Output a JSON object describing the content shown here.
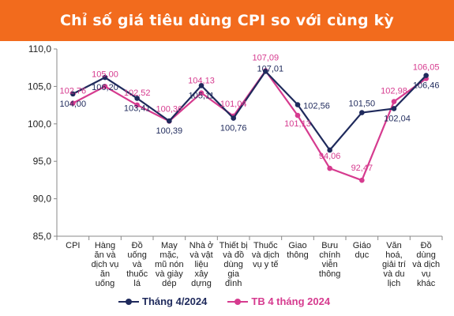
{
  "header": {
    "title": "Chỉ số giá tiêu dùng CPI so với cùng kỳ"
  },
  "colors": {
    "title_bg": "#f26b1d",
    "series_1": "#1f2a5c",
    "series_2": "#d63b8f"
  },
  "chart_data": {
    "type": "line",
    "title": "Chỉ số giá tiêu dùng CPI so với cùng kỳ",
    "xlabel": "",
    "ylabel": "",
    "ylim": [
      85,
      110
    ],
    "yticks": [
      "85,0",
      "90,0",
      "95,0",
      "100,0",
      "105,0",
      "110,0"
    ],
    "grid": false,
    "legend": "bottom",
    "categories": [
      [
        "CPI"
      ],
      [
        "Hàng",
        "ăn và",
        "dịch vụ",
        "ăn",
        "uống"
      ],
      [
        "Đồ",
        "uống",
        "và",
        "thuốc",
        "lá"
      ],
      [
        "May",
        "mặc,",
        "mũ nón",
        "và giày",
        "dép"
      ],
      [
        "Nhà ở",
        "và vật",
        "liệu",
        "xây",
        "dựng"
      ],
      [
        "Thiết bị",
        "và đồ",
        "dùng",
        "gia",
        "đình"
      ],
      [
        "Thuốc",
        "và dịch",
        "vụ y tế"
      ],
      [
        "Giao",
        "thông"
      ],
      [
        "Bưu",
        "chính",
        "viễn",
        "thông"
      ],
      [
        "Giáo",
        "dục"
      ],
      [
        "Văn",
        "hoá,",
        "giải trí",
        "và du",
        "lịch"
      ],
      [
        "Đồ",
        "dùng",
        "và dịch",
        "vụ",
        "khác"
      ]
    ],
    "series": [
      {
        "name": "Tháng 4/2024",
        "values": [
          104.0,
          106.2,
          103.41,
          100.39,
          105.11,
          100.76,
          107.01,
          102.56,
          96.5,
          101.5,
          102.04,
          106.46
        ],
        "labels": [
          "104,00",
          "106,20",
          "103,41",
          "100,39",
          "105,11",
          "100,76",
          "107,01",
          "102,56",
          "",
          "101,50",
          "102,04",
          "106,46"
        ]
      },
      {
        "name": "TB 4 tháng 2024",
        "values": [
          102.76,
          105.0,
          102.52,
          100.36,
          104.13,
          101.04,
          107.09,
          101.13,
          94.06,
          92.47,
          102.98,
          106.05
        ],
        "labels": [
          "102,76",
          "105,00",
          "102,52",
          "100,36",
          "104,13",
          "101,04",
          "107,09",
          "101,13",
          "94,06",
          "92,47",
          "102,98",
          "106,05"
        ]
      }
    ]
  }
}
